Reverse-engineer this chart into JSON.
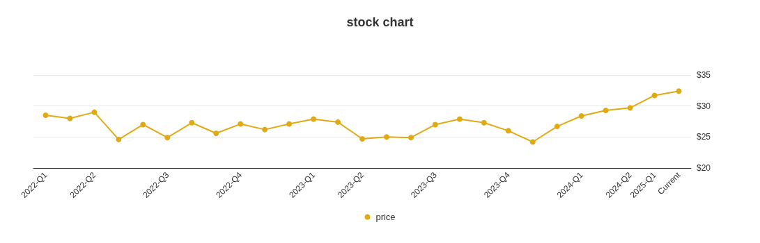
{
  "chart_data": {
    "type": "line",
    "title": "stock chart",
    "categories": [
      "2022-Q1",
      null,
      "2022-Q2",
      null,
      null,
      "2022-Q3",
      null,
      null,
      "2022-Q4",
      null,
      null,
      "2023-Q1",
      null,
      "2023-Q2",
      null,
      null,
      "2023-Q3",
      null,
      null,
      "2023-Q4",
      null,
      null,
      "2024-Q1",
      null,
      "2024-Q2",
      "2025-Q1",
      "Current"
    ],
    "series": [
      {
        "name": "price",
        "color": "#e0aa14",
        "values": [
          28.5,
          28.0,
          29.0,
          24.6,
          27.0,
          24.9,
          27.3,
          25.6,
          27.1,
          26.2,
          27.1,
          27.9,
          27.4,
          24.7,
          25.0,
          24.9,
          27.0,
          27.9,
          27.3,
          26.0,
          24.2,
          26.7,
          28.4,
          29.3,
          29.7,
          31.7,
          32.4
        ]
      }
    ],
    "ylim": [
      20,
      35
    ],
    "yticks": [
      {
        "value": 20,
        "label": "$20"
      },
      {
        "value": 25,
        "label": "$25"
      },
      {
        "value": 30,
        "label": "$30"
      },
      {
        "value": 35,
        "label": "$35"
      }
    ],
    "grid": "y",
    "legend": "bottom",
    "marker": "circle",
    "line_style": "solid"
  }
}
